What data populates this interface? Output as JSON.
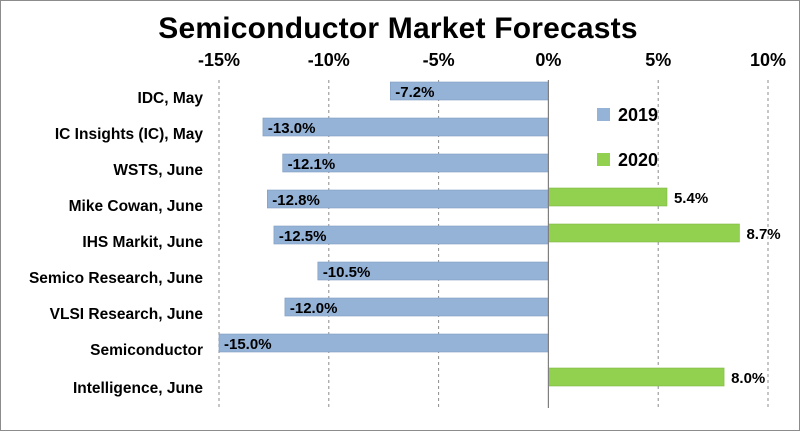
{
  "chart_data": {
    "type": "bar",
    "orientation": "horizontal",
    "title": "Semiconductor Market Forecasts",
    "xlabel": "",
    "ylabel": "",
    "xlim": [
      -15,
      10
    ],
    "x_ticks": [
      -15,
      -10,
      -5,
      0,
      5,
      10
    ],
    "x_tick_labels": [
      "-15%",
      "-10%",
      "-5%",
      "0%",
      "5%",
      "10%"
    ],
    "x_axis_position": "top",
    "grid": "vertical dashed",
    "legend_position": "top-right",
    "categories": [
      [
        "IDC, May"
      ],
      [
        "IC Insights (IC), May"
      ],
      [
        "WSTS, June"
      ],
      [
        "Mike Cowan, June"
      ],
      [
        "IHS Markit, June"
      ],
      [
        "Semico Research, June"
      ],
      [
        "VLSI Research, June"
      ],
      [
        "Semiconductor",
        "Intelligence, June"
      ]
    ],
    "series": [
      {
        "name": "2019",
        "color": "#95b3d7",
        "values": [
          -7.2,
          -13.0,
          -12.1,
          -12.8,
          -12.5,
          -10.5,
          -12.0,
          -15.0
        ],
        "labels": [
          "-7.2%",
          "-13.0%",
          "-12.1%",
          "-12.8%",
          "-12.5%",
          "-10.5%",
          "-12.0%",
          "-15.0%"
        ]
      },
      {
        "name": "2020",
        "color": "#92d050",
        "values": [
          null,
          null,
          5.4,
          8.7,
          null,
          null,
          null,
          8.0
        ],
        "labels": [
          null,
          null,
          "5.4%",
          "8.7%",
          null,
          null,
          null,
          "8.0%"
        ]
      }
    ]
  }
}
